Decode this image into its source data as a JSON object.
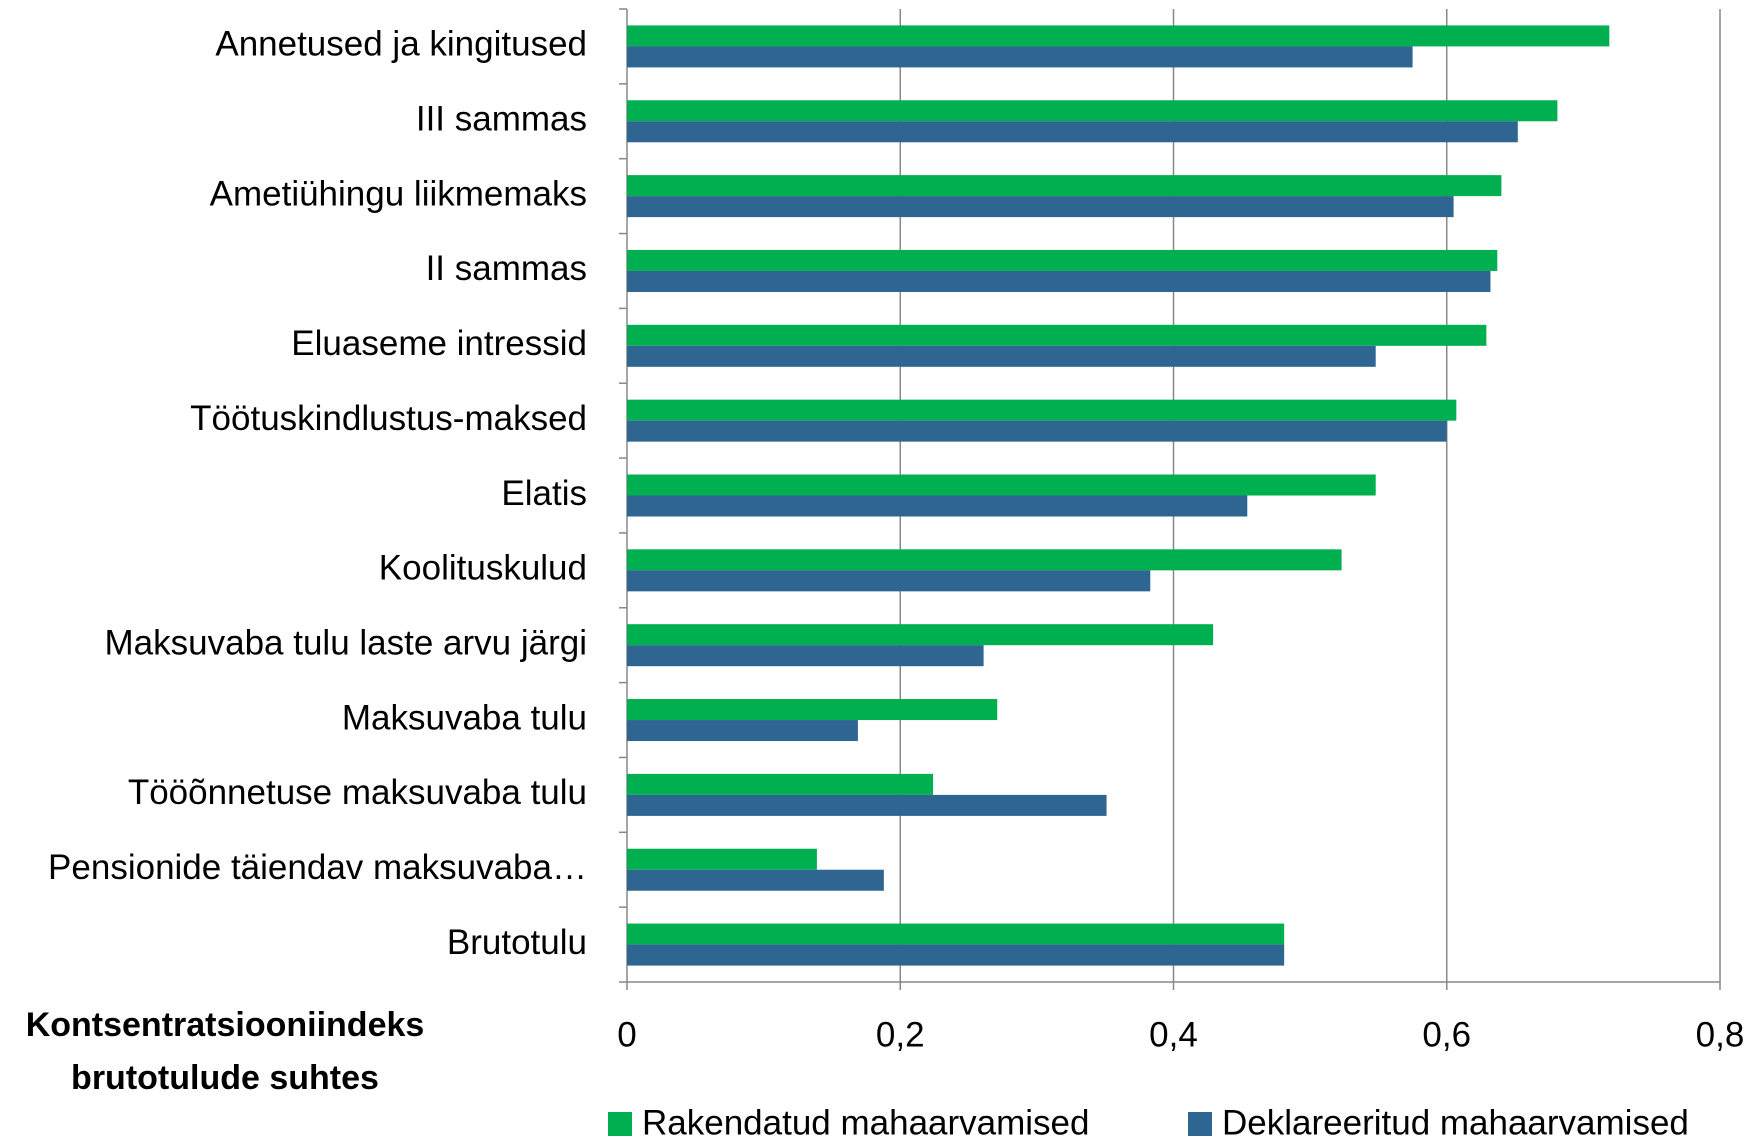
{
  "chart_data": {
    "type": "barh",
    "categories": [
      "Annetused ja kingitused",
      "III sammas",
      "Ametiühingu liikmemaks",
      "II sammas",
      "Eluaseme intressid",
      "Töötuskindlustus-maksed",
      "Elatis",
      "Koolituskulud",
      "Maksuvaba tulu laste arvu järgi",
      "Maksuvaba tulu",
      "Tööõnnetuse maksuvaba tulu",
      "Pensionide täiendav maksuvaba…",
      "Brutotulu"
    ],
    "series": [
      {
        "name": "Rakendatud mahaarvamised",
        "color": "#00b050",
        "values": [
          0.719,
          0.681,
          0.64,
          0.637,
          0.629,
          0.607,
          0.548,
          0.523,
          0.429,
          0.271,
          0.224,
          0.139,
          0.481
        ]
      },
      {
        "name": "Deklareeritud mahaarvamised",
        "color": "#2e6591",
        "values": [
          0.575,
          0.652,
          0.605,
          0.632,
          0.548,
          0.6,
          0.454,
          0.383,
          0.261,
          0.169,
          0.351,
          0.188,
          0.481
        ]
      }
    ],
    "x_label": [
      "Kontsentratsiooniindeks",
      "brutotulude suhtes"
    ],
    "xlim": [
      0,
      0.8
    ],
    "xticks": [
      0,
      {
        "value": 0.2,
        "label": "0,2"
      },
      {
        "value": 0.4,
        "label": "0,4"
      },
      {
        "value": 0.6,
        "label": "0,6"
      },
      {
        "value": 0.8,
        "label": "0,8"
      }
    ],
    "grid": true,
    "legend": "bottom"
  }
}
